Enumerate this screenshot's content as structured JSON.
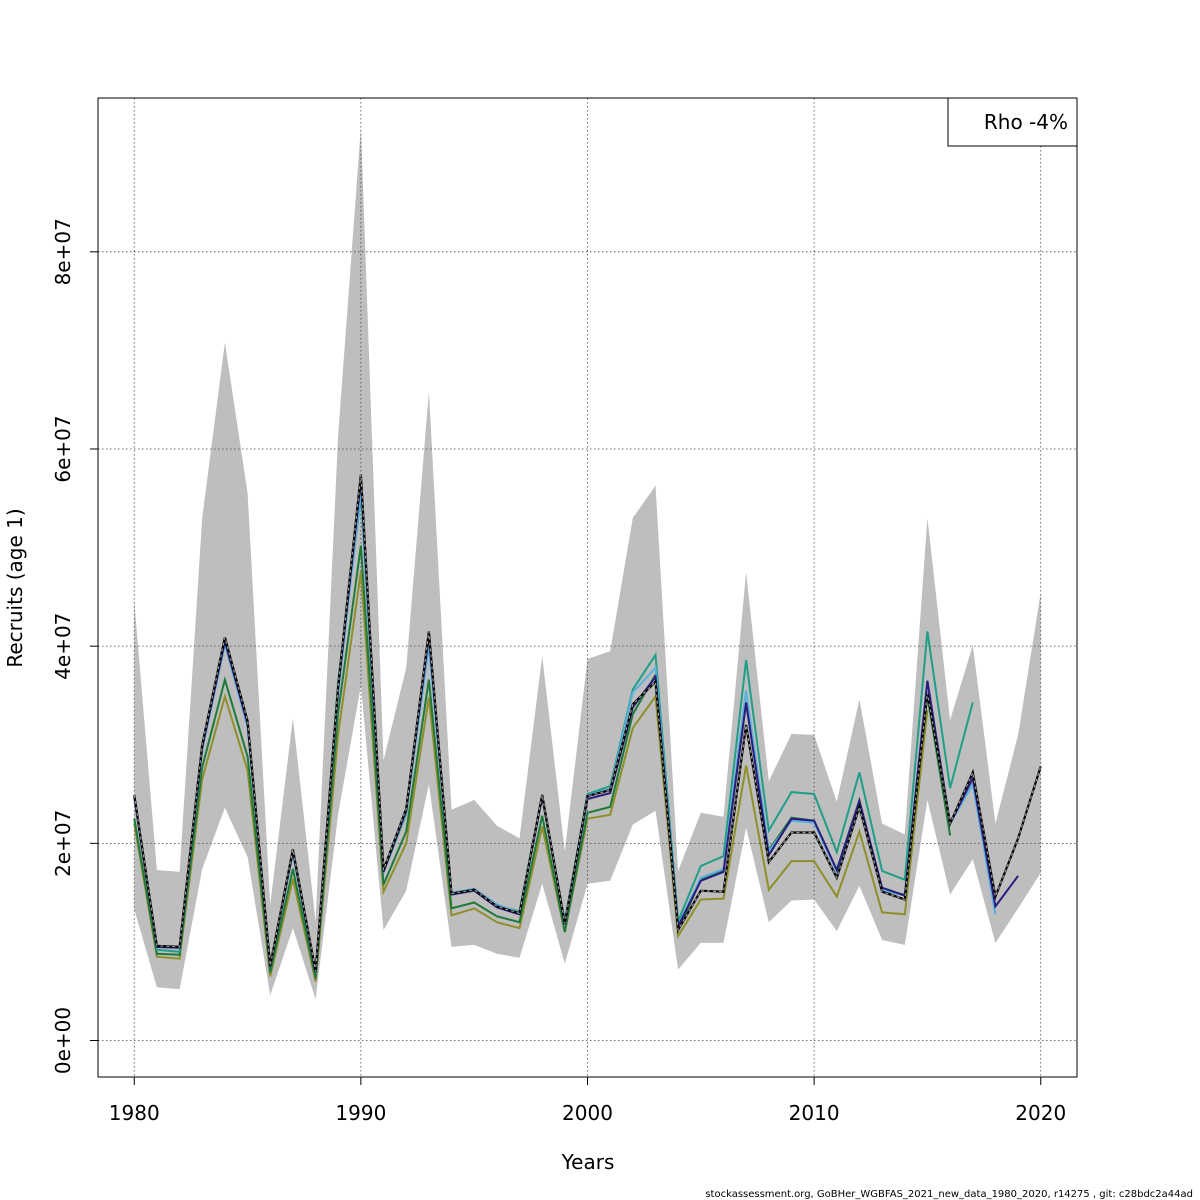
{
  "chart_data": {
    "type": "line",
    "title": "",
    "xlabel": "Years",
    "ylabel": "Recruits (age 1)",
    "xlim": [
      1978.4,
      2021.6
    ],
    "ylim": [
      -3700000,
      95600000
    ],
    "x_ticks": [
      1980,
      1990,
      2000,
      2010,
      2020
    ],
    "x_tick_labels": [
      "1980",
      "1990",
      "2000",
      "2010",
      "2020"
    ],
    "y_ticks": [
      0,
      20000000,
      40000000,
      60000000,
      80000000
    ],
    "y_tick_labels": [
      "0e+00",
      "2e+07",
      "4e+07",
      "6e+07",
      "8e+07"
    ],
    "grid": true,
    "legend": {
      "placement": "top-right",
      "text": "Rho -4%"
    },
    "x": [
      1980,
      1981,
      1982,
      1983,
      1984,
      1985,
      1986,
      1987,
      1988,
      1989,
      1990,
      1991,
      1992,
      1993,
      1994,
      1995,
      1996,
      1997,
      1998,
      1999,
      2000,
      2001,
      2002,
      2003,
      2004,
      2005,
      2006,
      2007,
      2008,
      2009,
      2010,
      2011,
      2012,
      2013,
      2014,
      2015,
      2016,
      2017,
      2018,
      2019,
      2020
    ],
    "confidence_band": {
      "upper": [
        44500000,
        17300000,
        17100000,
        53000000,
        70800000,
        55500000,
        13800000,
        32700000,
        12100000,
        61500000,
        92600000,
        28400000,
        37800000,
        65800000,
        23400000,
        24400000,
        21800000,
        20500000,
        39000000,
        19200000,
        38700000,
        39500000,
        53000000,
        56300000,
        17200000,
        23100000,
        22700000,
        47500000,
        26300000,
        31100000,
        31000000,
        24200000,
        34600000,
        22000000,
        20900000,
        53000000,
        32500000,
        40100000,
        22000000,
        31000000,
        45400000
      ],
      "lower": [
        13300000,
        5400000,
        5200000,
        17400000,
        23600000,
        18600000,
        4600000,
        11400000,
        4200000,
        23000000,
        36000000,
        11200000,
        15200000,
        26000000,
        9500000,
        9700000,
        8800000,
        8400000,
        15900000,
        7800000,
        15900000,
        16200000,
        21900000,
        23300000,
        7200000,
        9900000,
        9900000,
        21600000,
        12000000,
        14200000,
        14300000,
        11100000,
        15700000,
        10200000,
        9700000,
        24400000,
        14800000,
        18400000,
        9900000,
        13400000,
        17000000
      ]
    },
    "series": [
      {
        "color": "#000000",
        "dashed": true,
        "values": [
          24900000,
          9600000,
          9500000,
          30000000,
          40900000,
          32400000,
          7600000,
          19400000,
          7000000,
          36000000,
          57400000,
          17300000,
          23500000,
          41500000,
          14900000,
          15300000,
          13600000,
          12900000,
          24900000,
          11900000,
          24800000,
          25400000,
          34100000,
          36400000,
          11200000,
          15200000,
          15100000,
          32000000,
          18100000,
          21100000,
          21100000,
          16500000,
          23700000,
          15100000,
          14300000,
          35300000,
          22000000,
          27200000,
          14600000,
          20500000,
          27800000
        ]
      },
      {
        "color": "#2a1d80",
        "dashed": false,
        "values": [
          24700000,
          9500000,
          9400000,
          29700000,
          40500000,
          32100000,
          7500000,
          19200000,
          6900000,
          35700000,
          56900000,
          17100000,
          23300000,
          41100000,
          14800000,
          15200000,
          13500000,
          12800000,
          24700000,
          11800000,
          24500000,
          25100000,
          33800000,
          36900000,
          11600000,
          16200000,
          17100000,
          34300000,
          18800000,
          22500000,
          22300000,
          17300000,
          24300000,
          15500000,
          14700000,
          36500000,
          22000000,
          26600000,
          13600000,
          16700000,
          null
        ]
      },
      {
        "color": "#5bb0e0",
        "dashed": false,
        "values": [
          24600000,
          9600000,
          9500000,
          29500000,
          40200000,
          31800000,
          7500000,
          19100000,
          6900000,
          35300000,
          55800000,
          17200000,
          23200000,
          40000000,
          15000000,
          15400000,
          13800000,
          13000000,
          24800000,
          11900000,
          24900000,
          25500000,
          35300000,
          37800000,
          11700000,
          16500000,
          17400000,
          35500000,
          19200000,
          22300000,
          22100000,
          17100000,
          24100000,
          15300000,
          14700000,
          36000000,
          22000000,
          26000000,
          12800000,
          null,
          null
        ]
      },
      {
        "color": "#1f9e89",
        "dashed": false,
        "values": [
          24800000,
          9200000,
          9000000,
          29500000,
          40300000,
          32000000,
          7500000,
          19000000,
          6800000,
          36400000,
          55300000,
          17100000,
          23000000,
          40800000,
          14900000,
          15300000,
          13700000,
          13100000,
          24900000,
          12000000,
          25000000,
          25800000,
          35600000,
          39100000,
          12100000,
          17700000,
          18700000,
          38600000,
          21300000,
          25200000,
          25000000,
          19100000,
          27200000,
          17200000,
          16300000,
          41500000,
          25600000,
          34300000,
          null,
          null,
          null
        ]
      },
      {
        "color": "#1d7a3a",
        "dashed": false,
        "values": [
          22500000,
          8800000,
          8700000,
          27700000,
          36600000,
          28800000,
          6900000,
          17400000,
          6300000,
          33300000,
          50200000,
          15800000,
          21200000,
          36600000,
          13400000,
          14000000,
          12600000,
          12000000,
          22800000,
          11000000,
          23100000,
          23700000,
          33100000,
          37100000,
          11200000,
          16300000,
          17200000,
          34200000,
          19300000,
          22600000,
          22300000,
          17300000,
          24400000,
          15200000,
          14800000,
          35000000,
          20800000,
          null,
          null,
          null,
          null
        ]
      },
      {
        "color": "#8f8f2a",
        "dashed": false,
        "values": [
          22000000,
          8500000,
          8300000,
          26500000,
          34900000,
          27400000,
          6500000,
          16400000,
          6000000,
          31100000,
          47600000,
          15100000,
          20000000,
          34800000,
          12700000,
          13400000,
          12000000,
          11400000,
          21700000,
          11000000,
          22500000,
          22900000,
          31700000,
          34900000,
          10600000,
          14300000,
          14400000,
          27900000,
          15300000,
          18200000,
          18200000,
          14600000,
          21200000,
          13000000,
          12800000,
          33500000,
          null,
          null,
          null,
          null,
          null
        ]
      }
    ]
  },
  "footer": {
    "text": "stockassessment.org, GoBHer_WGBFAS_2021_new_data_1980_2020, r14275 , git: c28bdc2a44ad"
  }
}
